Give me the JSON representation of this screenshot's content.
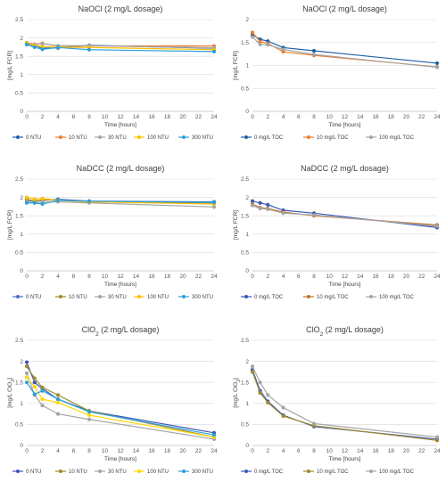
{
  "chart_data": [
    {
      "type": "line",
      "title": "NaOCl (2 mg/L dosage)",
      "title_sub": "",
      "title_suffix": "",
      "xlabel": "Time [hours]",
      "ylabel": "[mg/L FCR]",
      "ylabel_sub": "",
      "ylabel_suffix": "",
      "xlim": [
        0,
        24
      ],
      "ylim": [
        0,
        2.5
      ],
      "xticks": [
        "0",
        "2",
        "4",
        "6",
        "8",
        "10",
        "12",
        "14",
        "16",
        "18",
        "20",
        "22",
        "24"
      ],
      "yticks": [
        "0",
        "0.5",
        "1",
        "1.5",
        "2",
        "2.5"
      ],
      "grid": true,
      "legend": "bottom",
      "series": [
        {
          "name": "0 NTU",
          "color": "#1f5fa8",
          "x": [
            0,
            1,
            2,
            4,
            8,
            24
          ],
          "y": [
            1.83,
            1.8,
            1.72,
            1.73,
            1.8,
            1.72
          ]
        },
        {
          "name": "10 NTU",
          "color": "#ed7d31",
          "x": [
            0,
            1,
            2,
            4,
            8,
            24
          ],
          "y": [
            1.87,
            1.83,
            1.85,
            1.78,
            1.78,
            1.78
          ]
        },
        {
          "name": "30 NTU",
          "color": "#a5a5a5",
          "x": [
            0,
            1,
            2,
            4,
            8,
            24
          ],
          "y": [
            1.86,
            1.82,
            1.84,
            1.79,
            1.79,
            1.73
          ]
        },
        {
          "name": "100 NTU",
          "color": "#ffc000",
          "x": [
            0,
            1,
            2,
            4,
            8,
            24
          ],
          "y": [
            1.85,
            1.8,
            1.76,
            1.75,
            1.74,
            1.68
          ]
        },
        {
          "name": "300 NTU",
          "color": "#2e9fd8",
          "x": [
            0,
            1,
            2,
            4,
            8,
            24
          ],
          "y": [
            1.82,
            1.75,
            1.69,
            1.74,
            1.68,
            1.63
          ]
        }
      ]
    },
    {
      "type": "line",
      "title": "NaOCl (2 mg/L dosage)",
      "title_sub": "",
      "title_suffix": "",
      "xlabel": "Time [hours]",
      "ylabel": "[mg/L FCR]",
      "ylabel_sub": "",
      "ylabel_suffix": "",
      "xlim": [
        0,
        24
      ],
      "ylim": [
        0,
        2
      ],
      "xticks": [
        "0",
        "2",
        "4",
        "6",
        "8",
        "10",
        "12",
        "14",
        "16",
        "18",
        "20",
        "22",
        "24"
      ],
      "yticks": [
        "0",
        "0.5",
        "1",
        "1.5",
        "2"
      ],
      "grid": true,
      "legend": "bottom",
      "series": [
        {
          "name": "0 mg/L TOC",
          "color": "#1f5fa8",
          "x": [
            0,
            1,
            2,
            4,
            8,
            24
          ],
          "y": [
            1.67,
            1.57,
            1.53,
            1.39,
            1.32,
            1.05
          ]
        },
        {
          "name": "10 mg/L TOC",
          "color": "#ed7d31",
          "x": [
            0,
            1,
            2,
            4,
            8,
            24
          ],
          "y": [
            1.72,
            1.52,
            1.48,
            1.3,
            1.22,
            0.97
          ]
        },
        {
          "name": "100 mg/L TOC",
          "color": "#a5a5a5",
          "x": [
            0,
            1,
            2,
            4,
            8,
            24
          ],
          "y": [
            1.62,
            1.46,
            1.45,
            1.35,
            1.24,
            0.96
          ]
        }
      ]
    },
    {
      "type": "line",
      "title": "NaDCC (2 mg/L dosage)",
      "title_sub": "",
      "title_suffix": "",
      "xlabel": "Time [hours]",
      "ylabel": "[mg/L FCR]",
      "ylabel_sub": "",
      "ylabel_suffix": "",
      "xlim": [
        0,
        24
      ],
      "ylim": [
        0,
        2.5
      ],
      "xticks": [
        "0",
        "2",
        "4",
        "6",
        "8",
        "10",
        "12",
        "14",
        "16",
        "18",
        "20",
        "22",
        "24"
      ],
      "yticks": [
        "0",
        "0.5",
        "1",
        "1.5",
        "2",
        "2.5"
      ],
      "grid": true,
      "legend": "bottom",
      "series": [
        {
          "name": "0 NTU",
          "color": "#4472c4",
          "x": [
            0,
            1,
            2,
            4,
            8,
            24
          ],
          "y": [
            1.92,
            1.9,
            1.92,
            1.95,
            1.9,
            1.88
          ]
        },
        {
          "name": "10 NTU",
          "color": "#a08a2a",
          "x": [
            0,
            1,
            2,
            4,
            8,
            24
          ],
          "y": [
            1.95,
            1.9,
            1.93,
            1.93,
            1.88,
            1.85
          ]
        },
        {
          "name": "30 NTU",
          "color": "#a5a5a5",
          "x": [
            0,
            1,
            2,
            4,
            8,
            24
          ],
          "y": [
            1.88,
            1.86,
            1.87,
            1.88,
            1.85,
            1.74
          ]
        },
        {
          "name": "100 NTU",
          "color": "#ffc000",
          "x": [
            0,
            1,
            2,
            4,
            8,
            24
          ],
          "y": [
            2.0,
            1.95,
            1.97,
            1.92,
            1.88,
            1.82
          ]
        },
        {
          "name": "300 NTU",
          "color": "#2e9fd8",
          "x": [
            0,
            1,
            2,
            4,
            8,
            24
          ],
          "y": [
            1.85,
            1.85,
            1.82,
            1.92,
            1.9,
            1.86
          ]
        }
      ]
    },
    {
      "type": "line",
      "title": "NaDCC (2 mg/L dosage)",
      "title_sub": "",
      "title_suffix": "",
      "xlabel": "Time [hours]",
      "ylabel": "[mg/L FCR]",
      "ylabel_sub": "",
      "ylabel_suffix": "",
      "xlim": [
        0,
        24
      ],
      "ylim": [
        0,
        2.5
      ],
      "xticks": [
        "0",
        "2",
        "4",
        "6",
        "8",
        "10",
        "12",
        "14",
        "16",
        "18",
        "20",
        "22",
        "24"
      ],
      "yticks": [
        "0",
        "0.5",
        "1",
        "1.5",
        "2",
        "2.5"
      ],
      "grid": true,
      "legend": "bottom",
      "series": [
        {
          "name": "0 mg/L TOC",
          "color": "#3a57b8",
          "x": [
            0,
            1,
            2,
            4,
            8,
            24
          ],
          "y": [
            1.9,
            1.85,
            1.8,
            1.65,
            1.57,
            1.18
          ]
        },
        {
          "name": "10 mg/L TOC",
          "color": "#c0752a",
          "x": [
            0,
            1,
            2,
            4,
            8,
            24
          ],
          "y": [
            1.82,
            1.72,
            1.7,
            1.6,
            1.5,
            1.25
          ]
        },
        {
          "name": "100 mg/L TOC",
          "color": "#a5a5a5",
          "x": [
            0,
            1,
            2,
            4,
            8,
            24
          ],
          "y": [
            1.78,
            1.7,
            1.68,
            1.57,
            1.52,
            1.22
          ]
        }
      ]
    },
    {
      "type": "line",
      "title": "ClO",
      "title_sub": "2",
      "title_suffix": " (2 mg/L dosage)",
      "xlabel": "Time [hours]",
      "ylabel": "[mg/L ClO",
      "ylabel_sub": "2",
      "ylabel_suffix": "]",
      "xlim": [
        0,
        24
      ],
      "ylim": [
        0,
        2.5
      ],
      "xticks": [
        "0",
        "2",
        "4",
        "6",
        "8",
        "10",
        "12",
        "14",
        "16",
        "18",
        "20",
        "22",
        "24"
      ],
      "yticks": [
        "0",
        "0.5",
        "1",
        "1.5",
        "2",
        "2.5"
      ],
      "grid": true,
      "legend": "bottom",
      "series": [
        {
          "name": "0 NTU",
          "color": "#3a57b8",
          "x": [
            0,
            1,
            2,
            4,
            8,
            24
          ],
          "y": [
            1.98,
            1.5,
            1.35,
            1.1,
            0.82,
            0.3
          ]
        },
        {
          "name": "10 NTU",
          "color": "#a08a2a",
          "x": [
            0,
            1,
            2,
            4,
            8,
            24
          ],
          "y": [
            1.88,
            1.6,
            1.38,
            1.2,
            0.82,
            0.2
          ]
        },
        {
          "name": "30 NTU",
          "color": "#a5a5a5",
          "x": [
            0,
            1,
            2,
            4,
            8,
            24
          ],
          "y": [
            1.72,
            1.2,
            0.95,
            0.75,
            0.62,
            0.15
          ]
        },
        {
          "name": "100 NTU",
          "color": "#ffd700",
          "x": [
            0,
            1,
            2,
            4,
            8,
            24
          ],
          "y": [
            1.62,
            1.4,
            1.1,
            1.02,
            0.72,
            0.2
          ]
        },
        {
          "name": "300 NTU",
          "color": "#2e9fd8",
          "x": [
            0,
            1,
            2,
            4,
            8,
            24
          ],
          "y": [
            1.5,
            1.22,
            1.3,
            1.1,
            0.8,
            0.25
          ]
        }
      ]
    },
    {
      "type": "line",
      "title": "ClO",
      "title_sub": "2",
      "title_suffix": " (2 mg/L dosage)",
      "xlabel": "Time [hours]",
      "ylabel": "[mg/L ClO",
      "ylabel_sub": "2",
      "ylabel_suffix": "]",
      "xlim": [
        0,
        24
      ],
      "ylim": [
        0,
        2.5
      ],
      "xticks": [
        "0",
        "2",
        "4",
        "6",
        "8",
        "10",
        "12",
        "14",
        "16",
        "18",
        "20",
        "22",
        "24"
      ],
      "yticks": [
        "0",
        "0.5",
        "1",
        "1.5",
        "2",
        "2.5"
      ],
      "grid": true,
      "legend": "bottom",
      "series": [
        {
          "name": "0 mg/L TOC",
          "color": "#3a57b8",
          "x": [
            0,
            1,
            2,
            4,
            8,
            24
          ],
          "y": [
            1.8,
            1.3,
            1.05,
            0.72,
            0.45,
            0.15
          ]
        },
        {
          "name": "10 mg/L TOC",
          "color": "#a08a2a",
          "x": [
            0,
            1,
            2,
            4,
            8,
            24
          ],
          "y": [
            1.75,
            1.25,
            1.02,
            0.7,
            0.47,
            0.12
          ]
        },
        {
          "name": "100 mg/L TOC",
          "color": "#a5a5a5",
          "x": [
            0,
            1,
            2,
            4,
            8,
            24
          ],
          "y": [
            1.88,
            1.5,
            1.2,
            0.9,
            0.52,
            0.2
          ]
        }
      ]
    }
  ]
}
